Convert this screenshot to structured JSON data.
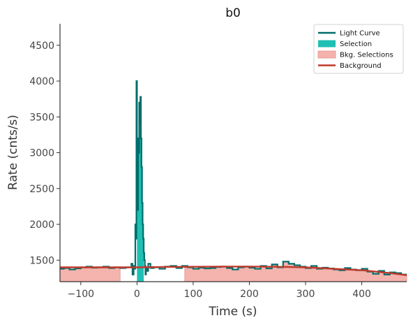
{
  "chart_data": {
    "type": "line",
    "title": "b0",
    "xlabel": "Time (s)",
    "ylabel": "Rate (cnts/s)",
    "xlim": [
      -137,
      480
    ],
    "ylim": [
      1200,
      4800
    ],
    "xticks": [
      -100,
      0,
      100,
      200,
      300,
      400
    ],
    "yticks": [
      1500,
      2000,
      2500,
      3000,
      3500,
      4000,
      4500
    ],
    "grid": false,
    "legend_position": "top-right",
    "colors": {
      "light_curve": "#006d6a",
      "selection": "#1fbfb3",
      "bkg_selection": "#f4b3ac",
      "bkg_selection_edge": "#e6908a",
      "background": "#c0392b",
      "axis": "#333333"
    },
    "legend": [
      {
        "label": "Light Curve",
        "kind": "line",
        "color": "#006d6a"
      },
      {
        "label": "Selection",
        "kind": "patch",
        "color": "#1fbfb3"
      },
      {
        "label": "Bkg. Selections",
        "kind": "patch",
        "color": "#f4b3ac"
      },
      {
        "label": "Background",
        "kind": "line",
        "color": "#c0392b"
      }
    ],
    "series": [
      {
        "name": "Light Curve",
        "style": "step",
        "color": "#006d6a",
        "x": [
          -137,
          -130,
          -120,
          -110,
          -100,
          -90,
          -80,
          -70,
          -60,
          -50,
          -40,
          -30,
          -20,
          -10,
          -8,
          -6,
          -4,
          -3,
          -2,
          -1,
          0,
          1,
          2,
          3,
          4,
          5,
          6,
          7,
          8,
          9,
          10,
          11,
          12,
          13,
          14,
          15,
          16,
          18,
          20,
          24,
          30,
          40,
          50,
          60,
          70,
          80,
          90,
          100,
          110,
          120,
          130,
          140,
          150,
          160,
          170,
          180,
          190,
          200,
          210,
          220,
          230,
          240,
          250,
          260,
          270,
          280,
          290,
          300,
          310,
          320,
          330,
          340,
          350,
          360,
          370,
          380,
          390,
          400,
          410,
          420,
          430,
          440,
          450,
          460,
          470,
          480
        ],
        "y": [
          1380,
          1390,
          1370,
          1385,
          1400,
          1410,
          1395,
          1400,
          1410,
          1390,
          1400,
          1390,
          1400,
          1450,
          1300,
          1420,
          1380,
          2000,
          1800,
          4000,
          3100,
          2200,
          3200,
          3000,
          3700,
          3400,
          3780,
          3200,
          2800,
          2300,
          2000,
          1800,
          1600,
          1500,
          1420,
          1300,
          1400,
          1350,
          1450,
          1390,
          1400,
          1380,
          1410,
          1420,
          1390,
          1420,
          1400,
          1380,
          1395,
          1385,
          1390,
          1405,
          1410,
          1390,
          1370,
          1400,
          1410,
          1395,
          1380,
          1420,
          1385,
          1440,
          1400,
          1480,
          1450,
          1430,
          1410,
          1390,
          1420,
          1380,
          1395,
          1385,
          1370,
          1360,
          1390,
          1370,
          1360,
          1380,
          1340,
          1310,
          1350,
          1300,
          1330,
          1320,
          1300,
          1300
        ]
      },
      {
        "name": "Background",
        "style": "line",
        "color": "#c0392b",
        "x": [
          -137,
          -50,
          0,
          50,
          100,
          150,
          200,
          250,
          300,
          350,
          400,
          450,
          480
        ],
        "y": [
          1400,
          1400,
          1400,
          1405,
          1408,
          1410,
          1410,
          1408,
          1400,
          1380,
          1360,
          1320,
          1290
        ]
      }
    ],
    "selection": {
      "x": [
        0,
        12
      ],
      "color": "#1fbfb3"
    },
    "bkg_selections": [
      {
        "x": [
          -137,
          -30
        ]
      },
      {
        "x": [
          85,
          480
        ]
      }
    ]
  }
}
